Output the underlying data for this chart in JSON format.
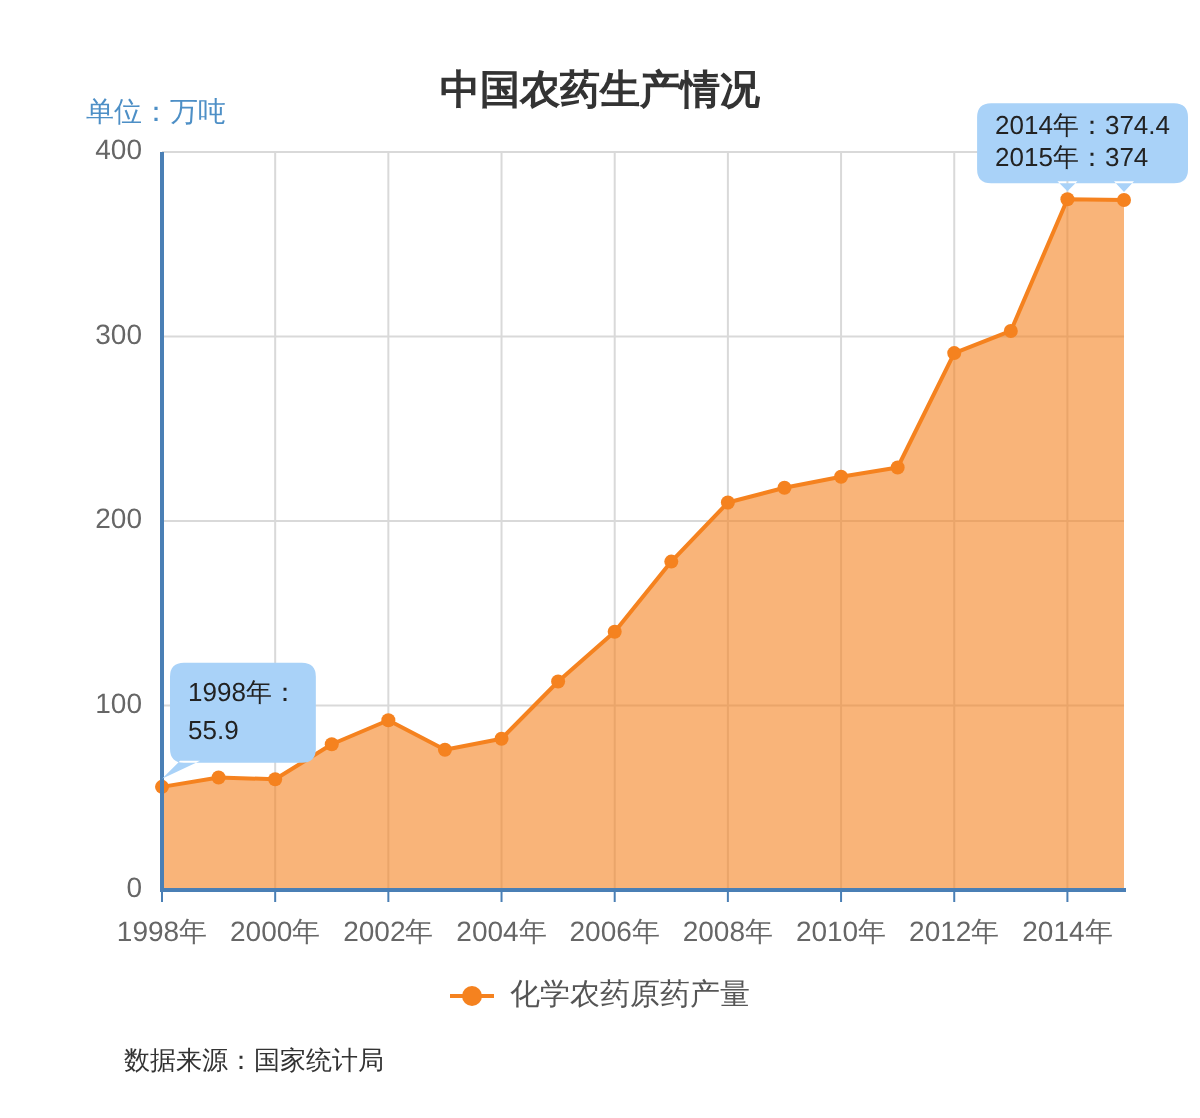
{
  "chart_data": {
    "type": "area",
    "title": "中国农药生产情况",
    "ylabel": "单位：万吨",
    "x": [
      1998,
      1999,
      2000,
      2001,
      2002,
      2003,
      2004,
      2005,
      2006,
      2007,
      2008,
      2009,
      2010,
      2011,
      2012,
      2013,
      2014,
      2015
    ],
    "series": [
      {
        "name": "化学农药原药产量",
        "color": "#f5821f",
        "values": [
          55.9,
          61,
          60,
          79,
          92,
          76,
          82,
          113,
          140,
          178,
          210,
          218,
          224,
          229,
          291,
          303,
          374.4,
          374
        ]
      }
    ],
    "xlim": [
      1998,
      2015
    ],
    "xticks": [
      {
        "value": 1998,
        "label": "1998年"
      },
      {
        "value": 2000,
        "label": "2000年"
      },
      {
        "value": 2002,
        "label": "2002年"
      },
      {
        "value": 2004,
        "label": "2004年"
      },
      {
        "value": 2006,
        "label": "2006年"
      },
      {
        "value": 2008,
        "label": "2008年"
      },
      {
        "value": 2010,
        "label": "2010年"
      },
      {
        "value": 2012,
        "label": "2012年"
      },
      {
        "value": 2014,
        "label": "2014年"
      }
    ],
    "ylim": [
      0,
      400
    ],
    "yticks": [
      0,
      100,
      200,
      300,
      400
    ],
    "grid": true,
    "legend": "bottom",
    "marker": "circle",
    "annotations": [
      {
        "text": "1998年：55.9",
        "x": 1998,
        "y": 55.9
      },
      {
        "text": "2014年：374.4",
        "x": 2014,
        "y": 374.4
      },
      {
        "text": "2015年：374",
        "x": 2015,
        "y": 374
      },
      "数据来源：国家统计局"
    ]
  }
}
